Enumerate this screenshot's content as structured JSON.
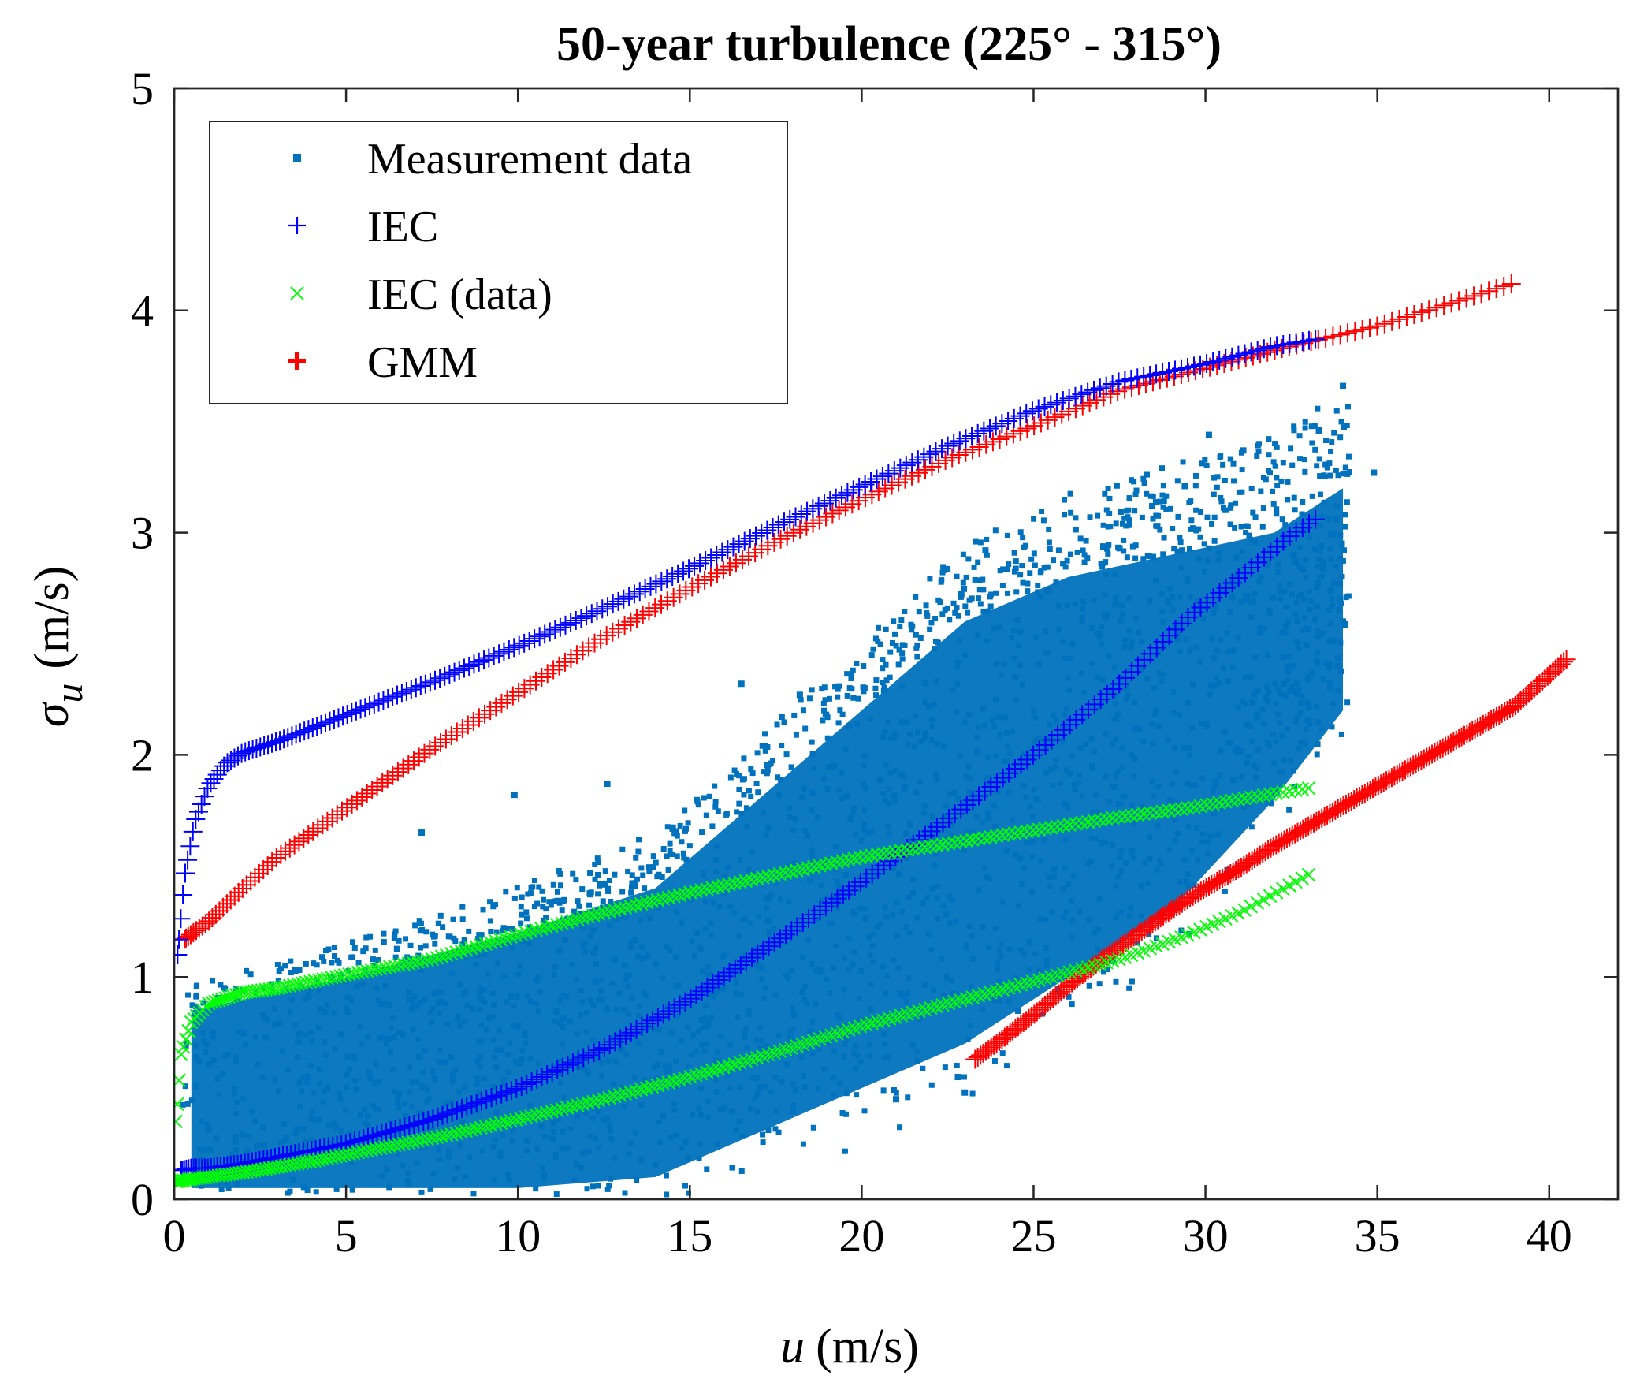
{
  "chart_data": {
    "type": "scatter",
    "title": "50-year turbulence (225° - 315°)",
    "xlabel": "u (m/s)",
    "xlabel_var": "u",
    "xlabel_unit": "(m/s)",
    "ylabel": "σu (m/s)",
    "ylabel_var": "σ",
    "ylabel_sub": "u",
    "ylabel_unit": "(m/s)",
    "xlim": [
      0,
      42
    ],
    "ylim": [
      0,
      5
    ],
    "xticks": [
      0,
      5,
      10,
      15,
      20,
      25,
      30,
      35,
      40
    ],
    "yticks": [
      0,
      1,
      2,
      3,
      4,
      5
    ],
    "grid": false,
    "legend_position": "top-left",
    "colors": {
      "measurement": "#0072bd",
      "iec": "#0000ff",
      "iec_data": "#00ff00",
      "gmm": "#ff0000"
    },
    "series": [
      {
        "name": "Measurement data",
        "marker": "square",
        "color": "#0072bd",
        "note": "dense cloud of 10-minute samples, roughly 0–34 m/s, sigma 0–3.7 m/s",
        "cloud_bands": [
          {
            "x": 0.5,
            "ylo": 0.05,
            "yhi": 0.85
          },
          {
            "x": 5,
            "ylo": 0.05,
            "yhi": 1.0
          },
          {
            "x": 10,
            "ylo": 0.05,
            "yhi": 1.2
          },
          {
            "x": 14,
            "ylo": 0.1,
            "yhi": 1.4
          },
          {
            "x": 17,
            "ylo": 0.3,
            "yhi": 1.8
          },
          {
            "x": 20,
            "ylo": 0.5,
            "yhi": 2.2
          },
          {
            "x": 23,
            "ylo": 0.7,
            "yhi": 2.6
          },
          {
            "x": 26,
            "ylo": 1.0,
            "yhi": 2.8
          },
          {
            "x": 29,
            "ylo": 1.3,
            "yhi": 2.9
          },
          {
            "x": 32,
            "ylo": 1.8,
            "yhi": 3.0
          },
          {
            "x": 34,
            "ylo": 2.2,
            "yhi": 3.2
          }
        ],
        "outliers": [
          [
            34.0,
            3.66
          ],
          [
            33.3,
            3.46
          ],
          [
            31.1,
            3.37
          ],
          [
            30.1,
            3.44
          ],
          [
            34.9,
            3.27
          ],
          [
            33.8,
            3.06
          ],
          [
            32.6,
            2.87
          ],
          [
            33.2,
            2.61
          ],
          [
            34.0,
            2.6
          ],
          [
            23.6,
            2.92
          ],
          [
            25.4,
            2.74
          ],
          [
            27.5,
            2.93
          ],
          [
            18.2,
            2.27
          ],
          [
            16.5,
            2.32
          ],
          [
            9.9,
            1.82
          ],
          [
            7.2,
            1.65
          ],
          [
            23.0,
            0.48
          ],
          [
            21.0,
            0.45
          ],
          [
            22.8,
            0.55
          ],
          [
            19.2,
            1.95
          ],
          [
            30.8,
            2.47
          ],
          [
            31.6,
            2.55
          ],
          [
            28.6,
            3.03
          ],
          [
            29.4,
            3.21
          ],
          [
            12.6,
            1.87
          ]
        ]
      },
      {
        "name": "IEC",
        "marker": "plus",
        "color": "#0000ff",
        "curves": [
          {
            "x": [
              0.1,
              0.3,
              0.6,
              1.0,
              1.5,
              2.0,
              3.0,
              4.0,
              5.0,
              7.5,
              10.0,
              12.5,
              15.0,
              17.5,
              20.0,
              22.5,
              25.0,
              27.5,
              30.0,
              32.0,
              33.2
            ],
            "y": [
              1.1,
              1.45,
              1.7,
              1.86,
              1.96,
              2.01,
              2.06,
              2.12,
              2.18,
              2.33,
              2.49,
              2.66,
              2.84,
              3.03,
              3.21,
              3.39,
              3.55,
              3.68,
              3.76,
              3.84,
              3.87
            ]
          },
          {
            "x": [
              0.2,
              0.5,
              1.0,
              2.0,
              3.0,
              5.0,
              7.5,
              10.0,
              12.5,
              15.0,
              17.5,
              20.0,
              22.5,
              25.0,
              27.5,
              29.5,
              31.0,
              32.5,
              33.2
            ],
            "y": [
              0.13,
              0.14,
              0.14,
              0.16,
              0.19,
              0.25,
              0.36,
              0.5,
              0.68,
              0.9,
              1.16,
              1.43,
              1.71,
              2.0,
              2.32,
              2.62,
              2.8,
              2.99,
              3.06
            ]
          }
        ]
      },
      {
        "name": "IEC (data)",
        "marker": "x",
        "color": "#00ff00",
        "curves": [
          {
            "x": [
              0.05,
              0.2,
              0.5,
              1.0,
              2.0,
              3.0,
              5.0,
              7.5,
              10.0,
              12.5,
              15.0,
              17.5,
              20.0,
              22.5,
              25.0,
              27.5,
              29.5,
              31.0,
              33.0
            ],
            "y": [
              0.35,
              0.65,
              0.8,
              0.88,
              0.93,
              0.95,
              1.01,
              1.08,
              1.19,
              1.29,
              1.38,
              1.46,
              1.54,
              1.6,
              1.66,
              1.72,
              1.76,
              1.8,
              1.85
            ]
          },
          {
            "x": [
              0.05,
              0.5,
              1.0,
              2.0,
              4.0,
              6.0,
              8.0,
              10.0,
              12.5,
              15.0,
              17.5,
              20.0,
              22.5,
              25.0,
              27.5,
              29.5,
              31.0,
              33.0
            ],
            "y": [
              0.08,
              0.09,
              0.1,
              0.12,
              0.17,
              0.23,
              0.29,
              0.36,
              0.45,
              0.55,
              0.66,
              0.78,
              0.88,
              0.98,
              1.08,
              1.19,
              1.29,
              1.46
            ]
          }
        ]
      },
      {
        "name": "GMM",
        "marker": "bold-plus",
        "color": "#ff0000",
        "curves": [
          {
            "x": [
              0.3,
              1.0,
              2.0,
              3.0,
              5.0,
              7.5,
              10.0,
              12.5,
              15.0,
              17.5,
              20.0,
              22.5,
              25.0,
              27.5,
              30.0,
              32.5,
              35.0,
              37.5,
              38.9
            ],
            "y": [
              1.17,
              1.25,
              1.4,
              1.54,
              1.76,
              2.03,
              2.28,
              2.53,
              2.75,
              2.96,
              3.15,
              3.33,
              3.48,
              3.64,
              3.74,
              3.84,
              3.93,
              4.05,
              4.12
            ]
          },
          {
            "x": [
              23.3,
              24.0,
              25.0,
              26.0,
              27.0,
              28.0,
              29.0,
              30.0,
              31.0,
              32.0,
              33.0,
              34.0,
              35.0,
              36.0,
              37.0,
              38.0,
              39.0,
              40.5
            ],
            "y": [
              0.63,
              0.71,
              0.83,
              0.96,
              1.08,
              1.19,
              1.3,
              1.4,
              1.49,
              1.59,
              1.68,
              1.77,
              1.86,
              1.95,
              2.04,
              2.13,
              2.22,
              2.43
            ]
          }
        ]
      }
    ]
  }
}
